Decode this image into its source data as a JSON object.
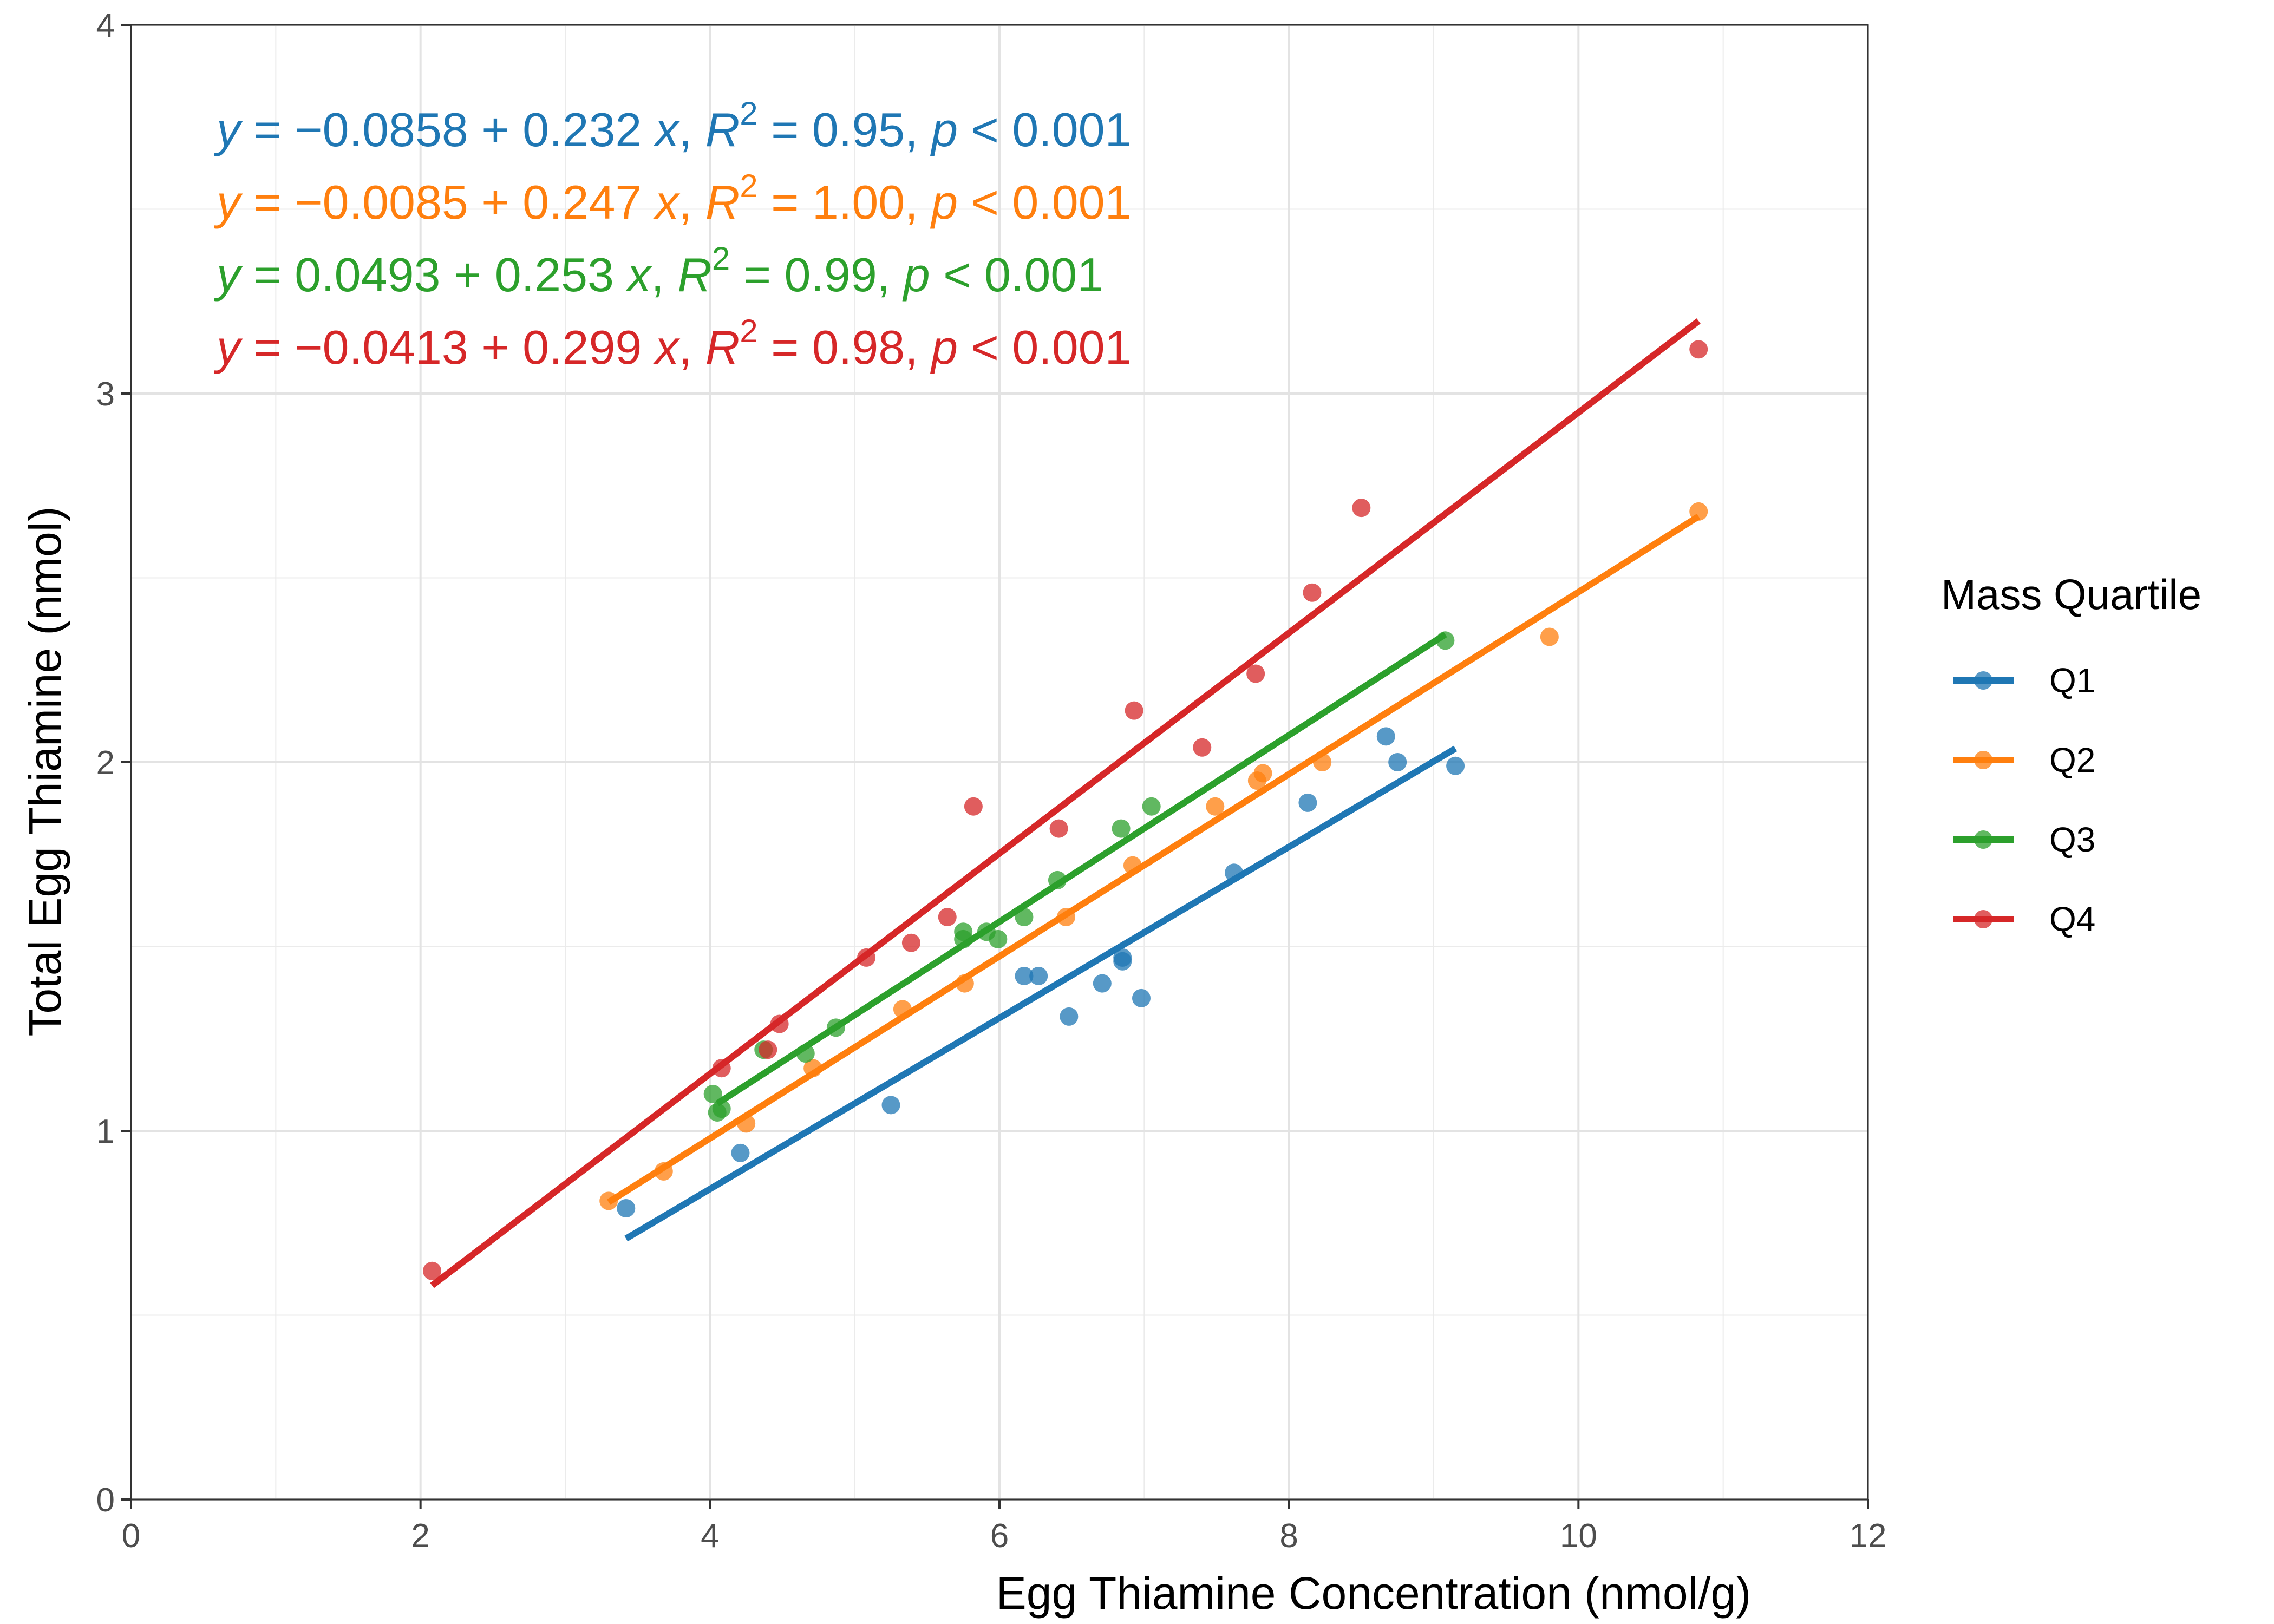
{
  "chart_data": {
    "type": "scatter",
    "xlabel": "Egg Thiamine Concentration (nmol/g)",
    "ylabel": "Total Egg Thiamine (nmol)",
    "xlim": [
      0,
      12
    ],
    "ylim": [
      0,
      4
    ],
    "x_ticks": [
      0,
      2,
      4,
      6,
      8,
      10,
      12
    ],
    "y_ticks": [
      0,
      1,
      2,
      3,
      4
    ],
    "grid": true,
    "legend": {
      "title": "Mass Quartile",
      "position": "right"
    },
    "series": [
      {
        "name": "Q1",
        "color": "#1F77B4",
        "equation": {
          "intercept_text": "−0.0858",
          "slope_text": "0.232",
          "r2_text": "0.95",
          "p_text": "< 0.001"
        },
        "fit": {
          "intercept": -0.0858,
          "slope": 0.232,
          "x_range": [
            3.42,
            9.15
          ]
        },
        "points": [
          [
            3.42,
            0.79
          ],
          [
            4.21,
            0.94
          ],
          [
            5.25,
            1.07
          ],
          [
            6.17,
            1.42
          ],
          [
            6.27,
            1.42
          ],
          [
            6.48,
            1.31
          ],
          [
            6.71,
            1.4
          ],
          [
            6.85,
            1.46
          ],
          [
            6.85,
            1.47
          ],
          [
            6.98,
            1.36
          ],
          [
            7.62,
            1.7
          ],
          [
            8.13,
            1.89
          ],
          [
            8.67,
            2.07
          ],
          [
            8.75,
            2.0
          ],
          [
            9.15,
            1.99
          ]
        ]
      },
      {
        "name": "Q2",
        "color": "#FF7F0E",
        "equation": {
          "intercept_text": "−0.0085",
          "slope_text": "0.247",
          "r2_text": "1.00",
          "p_text": "< 0.001"
        },
        "fit": {
          "intercept": -0.0085,
          "slope": 0.247,
          "x_range": [
            3.3,
            10.83
          ]
        },
        "points": [
          [
            3.3,
            0.81
          ],
          [
            3.68,
            0.89
          ],
          [
            4.25,
            1.02
          ],
          [
            4.71,
            1.17
          ],
          [
            5.33,
            1.33
          ],
          [
            5.76,
            1.4
          ],
          [
            6.46,
            1.58
          ],
          [
            6.92,
            1.72
          ],
          [
            7.49,
            1.88
          ],
          [
            7.78,
            1.95
          ],
          [
            7.82,
            1.97
          ],
          [
            8.23,
            2.0
          ],
          [
            9.8,
            2.34
          ],
          [
            10.83,
            2.68
          ]
        ]
      },
      {
        "name": "Q3",
        "color": "#2CA02C",
        "equation": {
          "intercept_text": "0.0493",
          "slope_text": "0.253",
          "r2_text": "0.99",
          "p_text": "< 0.001"
        },
        "fit": {
          "intercept": 0.0493,
          "slope": 0.253,
          "x_range": [
            4.05,
            9.08
          ]
        },
        "points": [
          [
            4.02,
            1.1
          ],
          [
            4.05,
            1.05
          ],
          [
            4.08,
            1.06
          ],
          [
            4.37,
            1.22
          ],
          [
            4.66,
            1.21
          ],
          [
            4.87,
            1.28
          ],
          [
            5.75,
            1.52
          ],
          [
            5.75,
            1.54
          ],
          [
            5.91,
            1.54
          ],
          [
            5.99,
            1.52
          ],
          [
            6.17,
            1.58
          ],
          [
            6.4,
            1.68
          ],
          [
            6.84,
            1.82
          ],
          [
            7.05,
            1.88
          ],
          [
            9.08,
            2.33
          ]
        ]
      },
      {
        "name": "Q4",
        "color": "#D62728",
        "equation": {
          "intercept_text": "−0.0413",
          "slope_text": "0.299",
          "r2_text": "0.98",
          "p_text": "< 0.001"
        },
        "fit": {
          "intercept": -0.0413,
          "slope": 0.299,
          "x_range": [
            2.08,
            10.83
          ]
        },
        "points": [
          [
            2.08,
            0.62
          ],
          [
            4.08,
            1.17
          ],
          [
            4.4,
            1.22
          ],
          [
            4.48,
            1.29
          ],
          [
            5.08,
            1.47
          ],
          [
            5.39,
            1.51
          ],
          [
            5.64,
            1.58
          ],
          [
            5.82,
            1.88
          ],
          [
            6.41,
            1.82
          ],
          [
            6.93,
            2.14
          ],
          [
            7.4,
            2.04
          ],
          [
            7.77,
            2.24
          ],
          [
            8.16,
            2.46
          ],
          [
            8.5,
            2.69
          ],
          [
            10.83,
            3.12
          ]
        ]
      }
    ]
  }
}
